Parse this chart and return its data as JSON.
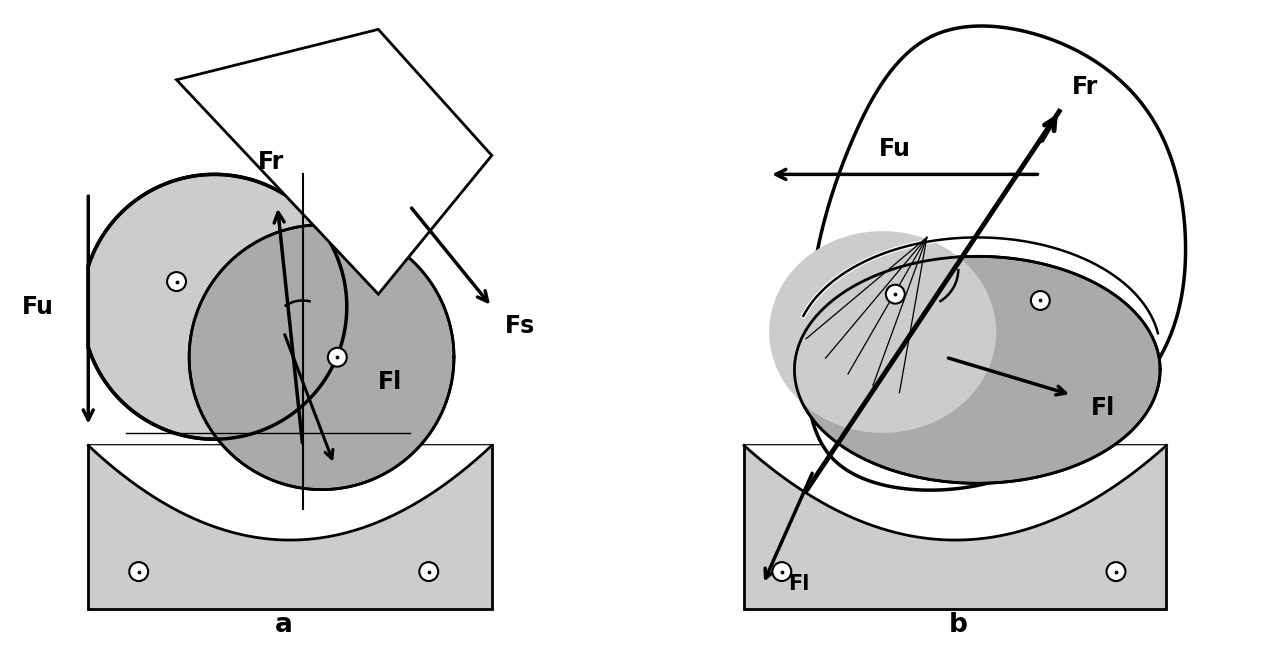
{
  "fig_width": 12.61,
  "fig_height": 6.64,
  "bg_color": "#ffffff",
  "light_gray": "#cccccc",
  "medium_gray": "#aaaaaa",
  "label_a": "a",
  "label_b": "b",
  "label_Fr": "Fr",
  "label_Fu": "Fu",
  "label_Fs": "Fs",
  "label_Fl": "Fl"
}
